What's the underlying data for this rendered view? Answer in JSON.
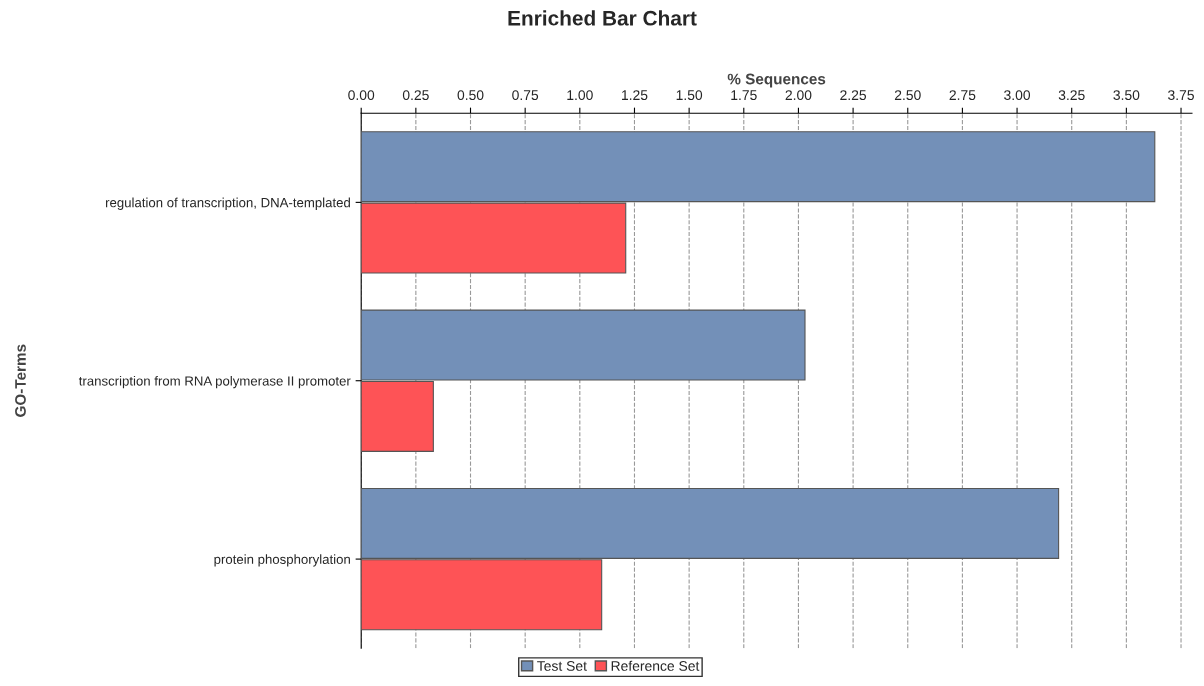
{
  "chart_data": {
    "type": "bar",
    "orientation": "horizontal",
    "title": "Enriched Bar Chart",
    "xlabel": "% Sequences",
    "ylabel": "GO-Terms",
    "categories": [
      "regulation of transcription, DNA-templated",
      "transcription from RNA polymerase II promoter",
      "protein phosphorylation"
    ],
    "series": [
      {
        "name": "Test Set",
        "color": "#7390b8",
        "values": [
          3.63,
          2.03,
          3.19
        ]
      },
      {
        "name": "Reference Set",
        "color": "#fe5356",
        "values": [
          1.21,
          0.33,
          1.1
        ]
      }
    ],
    "xlim": [
      0,
      3.8
    ],
    "xticks": [
      {
        "value": 0,
        "label": "0.00"
      },
      {
        "value": 0.25,
        "label": "0.25"
      },
      {
        "value": 0.5,
        "label": "0.50"
      },
      {
        "value": 0.75,
        "label": "0.75"
      },
      {
        "value": 1,
        "label": "1.00"
      },
      {
        "value": 1.25,
        "label": "1.25"
      },
      {
        "value": 1.5,
        "label": "1.50"
      },
      {
        "value": 1.75,
        "label": "1.75"
      },
      {
        "value": 2,
        "label": "2.00"
      },
      {
        "value": 2.25,
        "label": "2.25"
      },
      {
        "value": 2.5,
        "label": "2.50"
      },
      {
        "value": 2.75,
        "label": "2.75"
      },
      {
        "value": 3,
        "label": "3.00"
      },
      {
        "value": 3.25,
        "label": "3.25"
      },
      {
        "value": 3.5,
        "label": "3.50"
      },
      {
        "value": 3.75,
        "label": "3.75"
      }
    ],
    "grid": "x",
    "legend": "bottom"
  }
}
